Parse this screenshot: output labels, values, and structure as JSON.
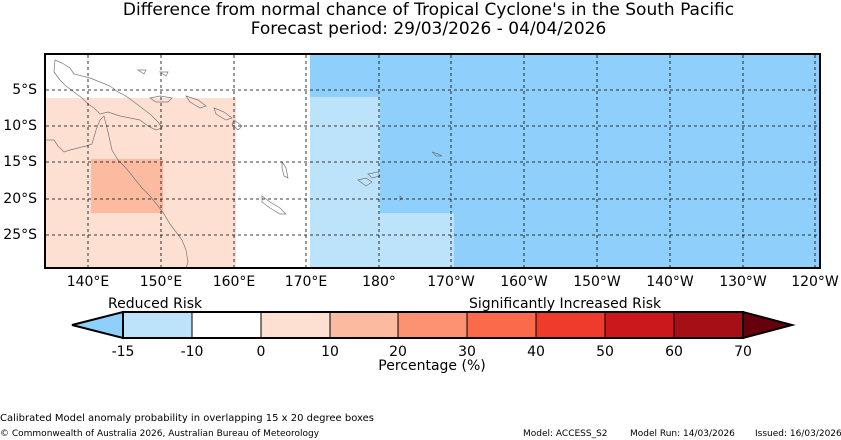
{
  "header": {
    "title": "Difference from normal chance of Tropical Cyclone's in the South Pacific",
    "subtitle": "Forecast period: 29/03/2026 - 04/04/2026"
  },
  "map": {
    "lat_ticks": [
      "5°S",
      "10°S",
      "15°S",
      "20°S",
      "25°S"
    ],
    "lon_ticks": [
      "140°E",
      "150°E",
      "160°E",
      "170°E",
      "180°",
      "170°W",
      "160°W",
      "150°W",
      "140°W",
      "130°W",
      "120°W"
    ],
    "gridlines": "dashed",
    "region_colors": {
      "reduced_0_10": "#fee0d2",
      "reduced_10_20": "#fcbba1",
      "increased_neg15": "#8ecffb",
      "increased_neg10": "#bde3fb"
    }
  },
  "legend": {
    "left_label": "Reduced Risk",
    "right_label": "Significantly Increased Risk",
    "tick_labels": [
      "-15",
      "-10",
      "0",
      "10",
      "20",
      "30",
      "40",
      "50",
      "60",
      "70"
    ],
    "axis_label": "Percentage (%)",
    "colors": [
      "#8ecffb",
      "#bde3fb",
      "#ffffff",
      "#fee0d2",
      "#fcbba1",
      "#fc9272",
      "#fb6a4a",
      "#ef3b2c",
      "#cb181d",
      "#a50f15",
      "#67000d"
    ]
  },
  "footer": {
    "note": "Calibrated Model anomaly probability in overlapping 15 x 20 degree boxes",
    "copyright": "© Commonwealth of Australia 2026, Australian Bureau of Meteorology",
    "model": "Model: ACCESS_S2",
    "model_run": "Model Run: 14/03/2026",
    "issued": "Issued: 16/03/2026"
  }
}
